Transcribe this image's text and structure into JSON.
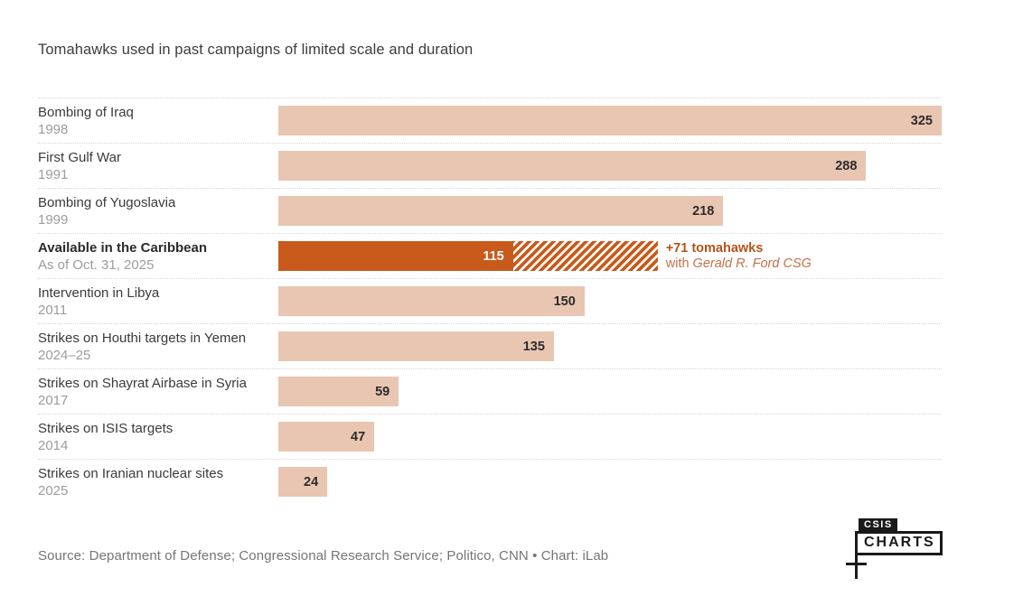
{
  "title": "Tomahawks used in past campaigns of limited scale and duration",
  "source": "Source: Department of Defense; Congressional Research Service; Politico, CNN • Chart: iLab",
  "logo": {
    "top": "CSIS",
    "bottom": "CHARTS"
  },
  "colors": {
    "bar_light": "#e9c6b1",
    "bar_highlight": "#c85a1b",
    "annotation_bold": "#b5541a",
    "annotation_regular": "#c4714a",
    "value_label": "#2b2b2b",
    "value_label_highlight": "#ffffff"
  },
  "chart_data": {
    "type": "bar",
    "orientation": "horizontal",
    "title": "Tomahawks used in past campaigns of limited scale and duration",
    "xlabel": "",
    "ylabel": "",
    "xlim": [
      0,
      325
    ],
    "grid": false,
    "legend": false,
    "rows": [
      {
        "label": "Bombing of Iraq",
        "sublabel": "1998",
        "value": 325
      },
      {
        "label": "First Gulf War",
        "sublabel": "1991",
        "value": 288
      },
      {
        "label": "Bombing of Yugoslavia",
        "sublabel": "1999",
        "value": 218
      },
      {
        "label": "Available in the Caribbean",
        "sublabel": "As of Oct. 31, 2025",
        "value": 115,
        "highlight": true,
        "extension": {
          "value": 71,
          "annotation_line1": "+71 tomahawks",
          "annotation_line2_prefix": "with ",
          "annotation_line2_italic": "Gerald R. Ford CSG"
        }
      },
      {
        "label": "Intervention in Libya",
        "sublabel": "2011",
        "value": 150
      },
      {
        "label": "Strikes on Houthi targets in Yemen",
        "sublabel": "2024–25",
        "value": 135
      },
      {
        "label": "Strikes on Shayrat Airbase in Syria",
        "sublabel": "2017",
        "value": 59
      },
      {
        "label": "Strikes on ISIS targets",
        "sublabel": "2014",
        "value": 47
      },
      {
        "label": "Strikes on Iranian nuclear sites",
        "sublabel": "2025",
        "value": 24
      }
    ]
  }
}
